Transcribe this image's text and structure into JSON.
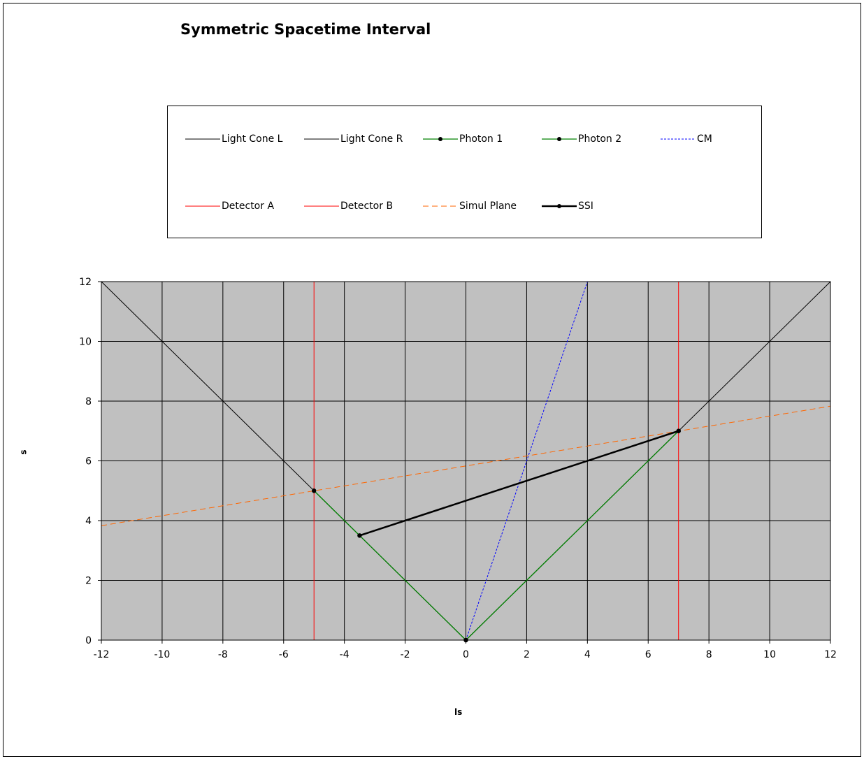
{
  "chart_data": {
    "type": "line",
    "title": "Symmetric Spacetime Interval",
    "xlabel": "ls",
    "ylabel": "s",
    "xlim": [
      -12,
      12
    ],
    "ylim": [
      0,
      12
    ],
    "x_ticks": [
      "-12",
      "-10",
      "-8",
      "-6",
      "-4",
      "-2",
      "0",
      "2",
      "4",
      "6",
      "8",
      "10",
      "12"
    ],
    "y_ticks": [
      "0",
      "2",
      "4",
      "6",
      "8",
      "10",
      "12"
    ],
    "grid": true,
    "plot_background": "#c0c0c0",
    "legend_position": "top",
    "series": [
      {
        "name": "Light Cone L",
        "color": "#000000",
        "style": "solid",
        "marker": false,
        "width": 1,
        "points": [
          [
            0,
            0
          ],
          [
            -12,
            12
          ]
        ]
      },
      {
        "name": "Light Cone R",
        "color": "#000000",
        "style": "solid",
        "marker": false,
        "width": 1,
        "points": [
          [
            0,
            0
          ],
          [
            12,
            12
          ]
        ]
      },
      {
        "name": "Photon 1",
        "color": "#008000",
        "style": "solid",
        "marker": true,
        "width": 1.3,
        "points": [
          [
            0,
            0
          ],
          [
            -5,
            5
          ]
        ]
      },
      {
        "name": "Photon 2",
        "color": "#008000",
        "style": "solid",
        "marker": true,
        "width": 1.3,
        "points": [
          [
            0,
            0
          ],
          [
            7,
            7
          ]
        ]
      },
      {
        "name": "CM",
        "color": "#0000ff",
        "style": "dotted",
        "marker": false,
        "width": 1,
        "points": [
          [
            0,
            0
          ],
          [
            4,
            12
          ]
        ]
      },
      {
        "name": "Detector A",
        "color": "#ff0000",
        "style": "solid",
        "marker": false,
        "width": 1,
        "points": [
          [
            -5,
            0
          ],
          [
            -5,
            12
          ]
        ]
      },
      {
        "name": "Detector B",
        "color": "#ff0000",
        "style": "solid",
        "marker": false,
        "width": 1,
        "points": [
          [
            7,
            0
          ],
          [
            7,
            12
          ]
        ]
      },
      {
        "name": "Simul Plane",
        "color": "#ff6600",
        "style": "dashed",
        "marker": false,
        "width": 1,
        "points": [
          [
            -12,
            3.83
          ],
          [
            12,
            7.83
          ]
        ]
      },
      {
        "name": "SSI",
        "color": "#000000",
        "style": "solid",
        "marker": true,
        "width": 2.5,
        "points": [
          [
            -3.5,
            3.5
          ],
          [
            7,
            7
          ]
        ]
      }
    ]
  }
}
